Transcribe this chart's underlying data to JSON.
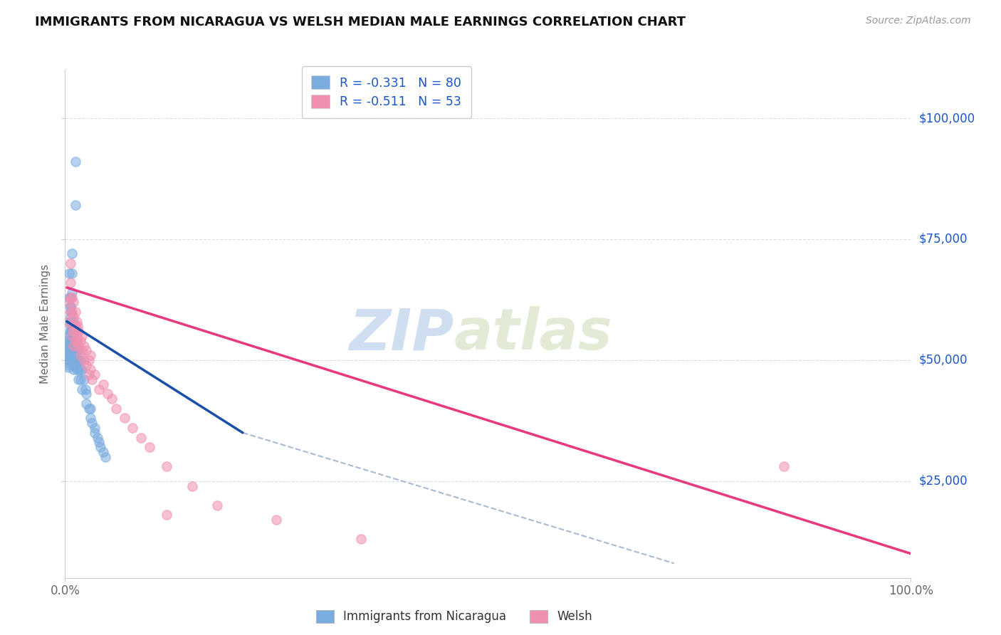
{
  "title": "IMMIGRANTS FROM NICARAGUA VS WELSH MEDIAN MALE EARNINGS CORRELATION CHART",
  "source": "Source: ZipAtlas.com",
  "ylabel": "Median Male Earnings",
  "xlim": [
    0,
    1.0
  ],
  "ylim": [
    5000,
    110000
  ],
  "blue_color": "#7aace0",
  "pink_color": "#f090b0",
  "blue_line_color": "#1a4faa",
  "pink_line_color": "#e83880",
  "dashed_color": "#aabbd0",
  "watermark": "ZIPatlas",
  "watermark_color": "#ccddf5",
  "title_color": "#111111",
  "source_color": "#999999",
  "right_label_color": "#1a55cc",
  "legend_r1_prefix": "R = ",
  "legend_r1_r": "-0.331",
  "legend_r1_n_label": "  N = ",
  "legend_r1_n": "80",
  "legend_r2_prefix": "R = ",
  "legend_r2_r": "-0.511",
  "legend_r2_n_label": "  N = ",
  "legend_r2_n": "53",
  "legend_label1": "Immigrants from Nicaragua",
  "legend_label2": "Welsh",
  "blue_scatter_x": [
    0.012,
    0.012,
    0.008,
    0.008,
    0.008,
    0.006,
    0.006,
    0.006,
    0.006,
    0.006,
    0.004,
    0.004,
    0.004,
    0.004,
    0.004,
    0.004,
    0.004,
    0.004,
    0.004,
    0.004,
    0.004,
    0.004,
    0.004,
    0.006,
    0.006,
    0.006,
    0.006,
    0.008,
    0.008,
    0.008,
    0.008,
    0.008,
    0.008,
    0.01,
    0.01,
    0.01,
    0.01,
    0.01,
    0.01,
    0.01,
    0.01,
    0.01,
    0.012,
    0.012,
    0.012,
    0.012,
    0.014,
    0.014,
    0.014,
    0.014,
    0.016,
    0.016,
    0.016,
    0.016,
    0.018,
    0.018,
    0.018,
    0.02,
    0.02,
    0.022,
    0.024,
    0.025,
    0.025,
    0.028,
    0.03,
    0.03,
    0.032,
    0.035,
    0.035,
    0.038,
    0.04,
    0.042,
    0.045,
    0.048,
    0.005,
    0.005,
    0.006,
    0.006,
    0.007,
    0.007
  ],
  "blue_scatter_y": [
    91000,
    82000,
    72000,
    68000,
    64000,
    61000,
    59000,
    57000,
    56000,
    55000,
    55000,
    54000,
    53500,
    53000,
    52500,
    52000,
    51500,
    51000,
    50500,
    50000,
    49500,
    49000,
    48500,
    63000,
    61000,
    58000,
    56000,
    57000,
    55000,
    54000,
    53000,
    52000,
    51000,
    58000,
    56000,
    54000,
    53000,
    52000,
    51000,
    50000,
    49000,
    48000,
    56000,
    54000,
    52000,
    50000,
    54000,
    52000,
    50000,
    48000,
    52000,
    50000,
    48000,
    46000,
    50000,
    48000,
    46000,
    48000,
    44000,
    46000,
    44000,
    43000,
    41000,
    40000,
    40000,
    38000,
    37000,
    36000,
    35000,
    34000,
    33000,
    32000,
    31000,
    30000,
    68000,
    63000,
    60000,
    58000,
    56000,
    54000
  ],
  "pink_scatter_x": [
    0.004,
    0.004,
    0.006,
    0.006,
    0.006,
    0.006,
    0.008,
    0.008,
    0.008,
    0.008,
    0.01,
    0.01,
    0.01,
    0.01,
    0.012,
    0.012,
    0.012,
    0.014,
    0.014,
    0.015,
    0.015,
    0.016,
    0.016,
    0.018,
    0.018,
    0.02,
    0.02,
    0.022,
    0.022,
    0.025,
    0.025,
    0.028,
    0.028,
    0.03,
    0.03,
    0.032,
    0.035,
    0.04,
    0.045,
    0.05,
    0.055,
    0.06,
    0.07,
    0.08,
    0.09,
    0.1,
    0.12,
    0.15,
    0.18,
    0.25,
    0.35,
    0.85,
    0.12
  ],
  "pink_scatter_y": [
    62000,
    58000,
    70000,
    66000,
    63000,
    60000,
    63000,
    60000,
    57000,
    55000,
    62000,
    59000,
    56000,
    53000,
    60000,
    57000,
    54000,
    58000,
    55000,
    57000,
    54000,
    56000,
    53000,
    54000,
    51000,
    55000,
    52000,
    53000,
    50000,
    52000,
    49000,
    50000,
    47000,
    51000,
    48000,
    46000,
    47000,
    44000,
    45000,
    43000,
    42000,
    40000,
    38000,
    36000,
    34000,
    32000,
    28000,
    24000,
    20000,
    17000,
    13000,
    28000,
    18000
  ],
  "blue_trend_x": [
    0.002,
    0.21
  ],
  "blue_trend_y": [
    58000,
    35000
  ],
  "pink_trend_x": [
    0.002,
    1.0
  ],
  "pink_trend_y": [
    65000,
    10000
  ],
  "dashed_trend_x": [
    0.21,
    0.72
  ],
  "dashed_trend_y": [
    35000,
    8000
  ],
  "right_ytick_vals": [
    25000,
    50000,
    75000,
    100000
  ],
  "right_ytick_labels": [
    "$25,000",
    "$50,000",
    "$75,000",
    "$100,000"
  ]
}
